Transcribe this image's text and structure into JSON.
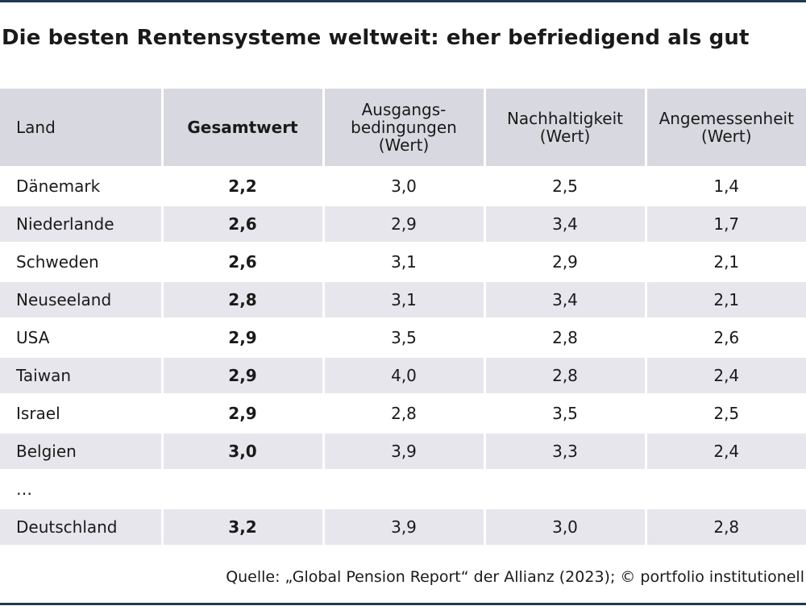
{
  "title": "Die besten Rentensysteme weltweit: eher befriedigend als gut",
  "table": {
    "headers": [
      "Land",
      "Gesamtwert",
      "Ausgangs-\nbedingungen\n(Wert)",
      "Nachhaltigkeit\n(Wert)",
      "Angemessenheit\n(Wert)"
    ],
    "rows": [
      [
        "Dänemark",
        "2,2",
        "3,0",
        "2,5",
        "1,4"
      ],
      [
        "Niederlande",
        "2,6",
        "2,9",
        "3,4",
        "1,7"
      ],
      [
        "Schweden",
        "2,6",
        "3,1",
        "2,9",
        "2,1"
      ],
      [
        "Neuseeland",
        "2,8",
        "3,1",
        "3,4",
        "2,1"
      ],
      [
        "USA",
        "2,9",
        "3,5",
        "2,8",
        "2,6"
      ],
      [
        "Taiwan",
        "2,9",
        "4,0",
        "2,8",
        "2,4"
      ],
      [
        "Israel",
        "2,9",
        "2,8",
        "3,5",
        "2,5"
      ],
      [
        "Belgien",
        "3,0",
        "3,9",
        "3,3",
        "2,4"
      ],
      [
        "…",
        "",
        "",
        "",
        ""
      ],
      [
        "Deutschland",
        "3,2",
        "3,9",
        "3,0",
        "2,8"
      ]
    ]
  },
  "source": "Quelle: „Global Pension Report“ der Allianz (2023); © portfolio institutionell",
  "colors": {
    "rule": "#1f3a52",
    "header_bg": "#d8d8e0",
    "stripe_bg": "#e6e6ec"
  }
}
